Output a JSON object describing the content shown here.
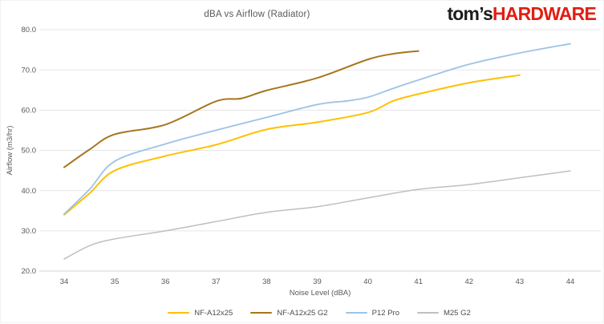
{
  "header": {
    "title": "dBA vs Airflow (Radiator)",
    "logo_prefix": "tom’s",
    "logo_suffix": "HARDWARE",
    "logo_prefix_color": "#1d1d1b",
    "logo_suffix_color": "#e11d12"
  },
  "chart_data": {
    "type": "line",
    "title": "dBA vs Airflow (Radiator)",
    "xlabel": "Noise Level (dBA)",
    "ylabel": "Airflow (m3/hr)",
    "xlim": [
      34,
      44
    ],
    "ylim": [
      20,
      80
    ],
    "x_ticks": [
      "34",
      "35",
      "36",
      "37",
      "38",
      "39",
      "40",
      "41",
      "42",
      "43",
      "44"
    ],
    "y_ticks": [
      "20.0",
      "30.0",
      "40.0",
      "50.0",
      "60.0",
      "70.0",
      "80.0"
    ],
    "grid": "horizontal",
    "legend_position": "bottom",
    "grid_color": "#e6e6e6",
    "axis_line_color": "#d4d4d4",
    "series": [
      {
        "name": "NF-A12x25",
        "color": "#FFC000",
        "x": [
          34,
          34.5,
          35,
          36,
          37,
          38,
          39,
          40,
          40.5,
          41,
          42,
          43
        ],
        "values": [
          34.0,
          39.3,
          45.0,
          48.6,
          51.4,
          55.2,
          57.0,
          59.4,
          62.3,
          64.0,
          66.8,
          68.7
        ]
      },
      {
        "name": "NF-A12x25 G2",
        "color": "#A6761D",
        "x": [
          34,
          34.5,
          35,
          36,
          37,
          37.5,
          38,
          39,
          40,
          40.5,
          41
        ],
        "values": [
          45.8,
          50.2,
          54.0,
          56.4,
          62.2,
          62.9,
          64.9,
          68.0,
          72.6,
          74.0,
          74.7
        ]
      },
      {
        "name": "P12 Pro",
        "color": "#9DC3E6",
        "x": [
          34,
          34.5,
          35,
          36,
          37,
          38,
          39,
          39.6,
          40,
          40.5,
          41,
          42,
          43,
          44
        ],
        "values": [
          34.2,
          40.3,
          47.3,
          51.6,
          55.0,
          58.2,
          61.4,
          62.3,
          63.2,
          65.4,
          67.5,
          71.4,
          74.2,
          76.5
        ]
      },
      {
        "name": "M25 G2",
        "color": "#BFBFBF",
        "x": [
          34,
          34.5,
          35,
          36,
          37,
          38,
          39,
          40,
          41,
          42,
          43,
          44
        ],
        "values": [
          23.0,
          26.3,
          28.0,
          30.0,
          32.3,
          34.6,
          36.0,
          38.2,
          40.3,
          41.5,
          43.2,
          44.9
        ]
      }
    ]
  }
}
